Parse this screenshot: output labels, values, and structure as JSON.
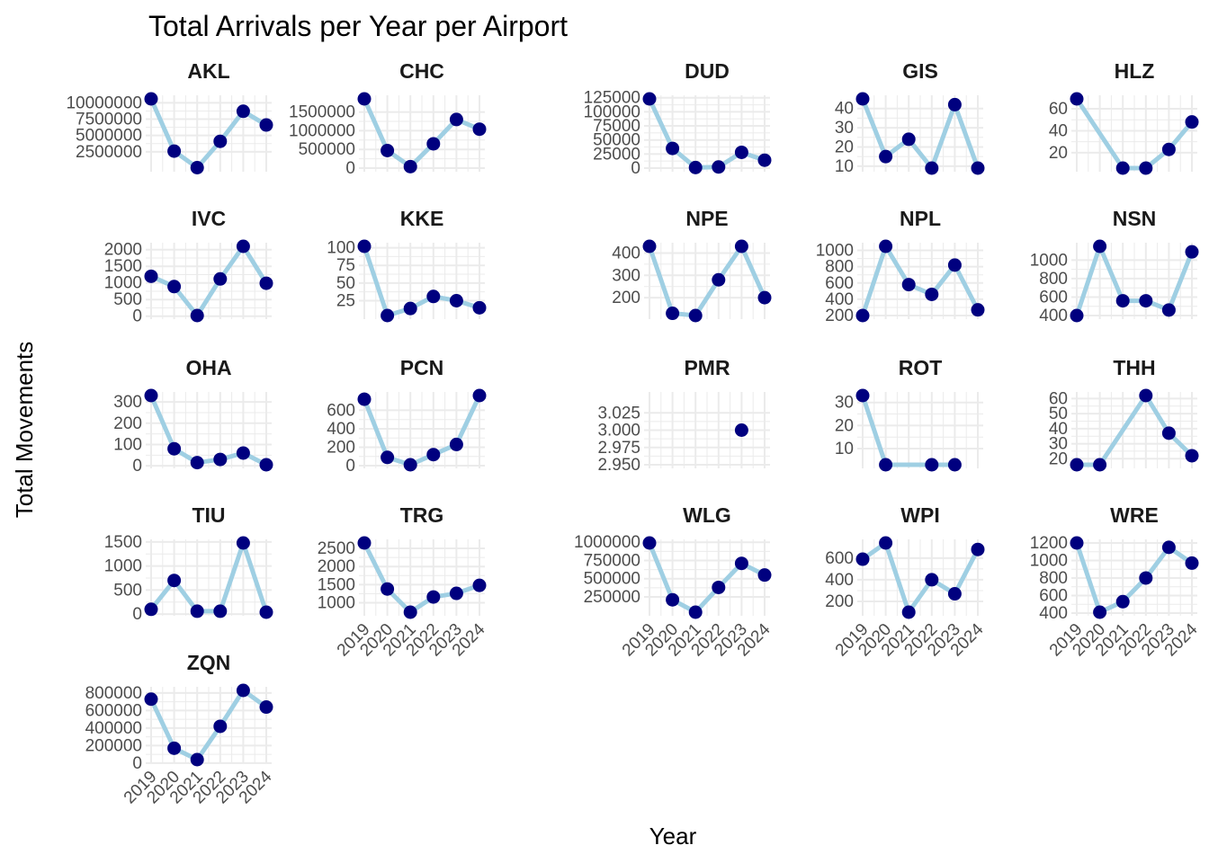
{
  "chart_data": {
    "type": "line",
    "title": "Total Arrivals per Year per Airport",
    "xlabel": "Year",
    "ylabel": "Total Movements",
    "x": [
      2019,
      2020,
      2021,
      2022,
      2023,
      2024
    ],
    "grid": true,
    "legend": "none",
    "colors": {
      "line": "#9fcfe3",
      "point": "#00007f",
      "grid": "#ebebeb",
      "tick": "#4d4d4d"
    },
    "panels": [
      {
        "name": "AKL",
        "values": [
          10600000,
          2600000,
          70000,
          4100000,
          8700000,
          6600000
        ],
        "ylim": [
          0,
          10600000
        ],
        "yticks": [
          2500000,
          5000000,
          7500000,
          10000000
        ],
        "ytick_labels": [
          "2500000",
          "5000000",
          "7500000",
          "10000000"
        ]
      },
      {
        "name": "CHC",
        "values": [
          1850000,
          470000,
          40000,
          650000,
          1300000,
          1040000
        ],
        "ylim": [
          0,
          1850000
        ],
        "yticks": [
          0,
          500000,
          1000000,
          1500000
        ],
        "ytick_labels": [
          "0",
          "500000",
          "1000000",
          "1500000"
        ]
      },
      {
        "name": "DUD",
        "values": [
          123000,
          35000,
          1000,
          2000,
          28000,
          14000
        ],
        "ylim": [
          0,
          123000
        ],
        "yticks": [
          0,
          25000,
          50000,
          75000,
          100000,
          125000
        ],
        "ytick_labels": [
          "0",
          "25000",
          "50000",
          "75000",
          "100000",
          "125000"
        ]
      },
      {
        "name": "GIS",
        "values": [
          45,
          15,
          24,
          9,
          42,
          9
        ],
        "ylim": [
          9,
          45
        ],
        "yticks": [
          10,
          20,
          30,
          40
        ],
        "ytick_labels": [
          "10",
          "20",
          "30",
          "40"
        ]
      },
      {
        "name": "HLZ",
        "values": [
          69,
          null,
          6,
          6,
          23,
          48
        ],
        "ylim": [
          6,
          69
        ],
        "yticks": [
          20,
          40,
          60
        ],
        "ytick_labels": [
          "20",
          "40",
          "60"
        ]
      },
      {
        "name": "IVC",
        "values": [
          1200,
          890,
          20,
          1120,
          2100,
          990
        ],
        "ylim": [
          20,
          2100
        ],
        "yticks": [
          0,
          500,
          1000,
          1500,
          2000
        ],
        "ytick_labels": [
          "0",
          "500",
          "1000",
          "1500",
          "2000"
        ]
      },
      {
        "name": "KKE",
        "values": [
          102,
          4,
          14,
          31,
          25,
          15
        ],
        "ylim": [
          4,
          102
        ],
        "yticks": [
          25,
          50,
          75,
          100
        ],
        "ytick_labels": [
          "25",
          "50",
          "75",
          "100"
        ]
      },
      {
        "name": "NPE",
        "values": [
          430,
          130,
          120,
          280,
          430,
          200
        ],
        "ylim": [
          120,
          430
        ],
        "yticks": [
          200,
          300,
          400
        ],
        "ytick_labels": [
          "200",
          "300",
          "400"
        ]
      },
      {
        "name": "NPL",
        "values": [
          200,
          1050,
          580,
          460,
          820,
          270
        ],
        "ylim": [
          200,
          1050
        ],
        "yticks": [
          200,
          400,
          600,
          800,
          1000
        ],
        "ytick_labels": [
          "200",
          "400",
          "600",
          "800",
          "1000"
        ]
      },
      {
        "name": "NSN",
        "values": [
          400,
          1150,
          560,
          560,
          460,
          1090
        ],
        "ylim": [
          400,
          1150
        ],
        "yticks": [
          400,
          600,
          800,
          1000
        ],
        "ytick_labels": [
          "400",
          "600",
          "800",
          "1000"
        ]
      },
      {
        "name": "OHA",
        "values": [
          330,
          80,
          15,
          30,
          60,
          5
        ],
        "ylim": [
          5,
          330
        ],
        "yticks": [
          0,
          100,
          200,
          300
        ],
        "ytick_labels": [
          "0",
          "100",
          "200",
          "300"
        ]
      },
      {
        "name": "PCN",
        "values": [
          720,
          90,
          10,
          120,
          230,
          760
        ],
        "ylim": [
          10,
          760
        ],
        "yticks": [
          0,
          200,
          400,
          600
        ],
        "ytick_labels": [
          "0",
          "200",
          "400",
          "600"
        ]
      },
      {
        "name": "PMR",
        "values": [
          null,
          null,
          null,
          null,
          3,
          null
        ],
        "ylim": [
          2.95,
          3.05
        ],
        "yticks": [
          2.95,
          2.975,
          3.0,
          3.025
        ],
        "ytick_labels": [
          "2.950",
          "2.975",
          "3.000",
          "3.025"
        ]
      },
      {
        "name": "ROT",
        "values": [
          33,
          3,
          null,
          3,
          3,
          null
        ],
        "ylim": [
          3,
          33
        ],
        "yticks": [
          10,
          20,
          30
        ],
        "ytick_labels": [
          "10",
          "20",
          "30"
        ]
      },
      {
        "name": "THH",
        "values": [
          16,
          16,
          null,
          62,
          37,
          22
        ],
        "ylim": [
          16,
          62
        ],
        "yticks": [
          20,
          30,
          40,
          50,
          60
        ],
        "ytick_labels": [
          "20",
          "30",
          "40",
          "50",
          "60"
        ]
      },
      {
        "name": "TIU",
        "values": [
          100,
          700,
          60,
          60,
          1480,
          40
        ],
        "ylim": [
          40,
          1480
        ],
        "yticks": [
          0,
          500,
          1000,
          1500
        ],
        "ytick_labels": [
          "0",
          "500",
          "1000",
          "1500"
        ]
      },
      {
        "name": "TRG",
        "values": [
          2650,
          1380,
          740,
          1160,
          1260,
          1480
        ],
        "ylim": [
          740,
          2650
        ],
        "yticks": [
          1000,
          1500,
          2000,
          2500
        ],
        "ytick_labels": [
          "1000",
          "1500",
          "2000",
          "2500"
        ]
      },
      {
        "name": "WLG",
        "values": [
          990000,
          210000,
          40000,
          380000,
          710000,
          550000
        ],
        "ylim": [
          40000,
          990000
        ],
        "yticks": [
          250000,
          500000,
          750000,
          1000000
        ],
        "ytick_labels": [
          "250000",
          "500000",
          "750000",
          "1000000"
        ]
      },
      {
        "name": "WPI",
        "values": [
          590,
          740,
          100,
          400,
          270,
          680
        ],
        "ylim": [
          100,
          740
        ],
        "yticks": [
          200,
          400,
          600
        ],
        "ytick_labels": [
          "200",
          "400",
          "600"
        ]
      },
      {
        "name": "WRE",
        "values": [
          1200,
          410,
          530,
          800,
          1150,
          970
        ],
        "ylim": [
          410,
          1200
        ],
        "yticks": [
          400,
          600,
          800,
          1000,
          1200
        ],
        "ytick_labels": [
          "400",
          "600",
          "800",
          "1000",
          "1200"
        ]
      },
      {
        "name": "ZQN",
        "values": [
          730000,
          170000,
          40000,
          420000,
          830000,
          640000
        ],
        "ylim": [
          40000,
          830000
        ],
        "yticks": [
          0,
          200000,
          400000,
          600000,
          800000
        ],
        "ytick_labels": [
          "0",
          "200000",
          "400000",
          "600000",
          "800000"
        ]
      }
    ]
  }
}
